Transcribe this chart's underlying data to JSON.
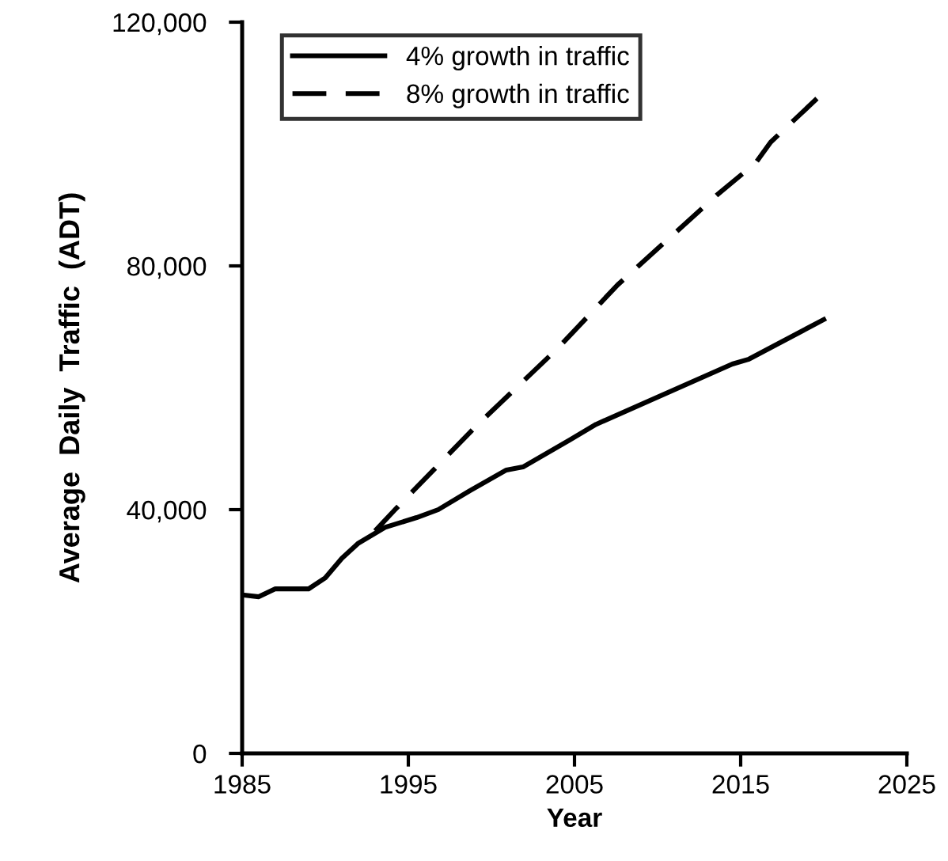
{
  "chart_data": {
    "type": "line",
    "xlabel": "Year",
    "ylabel": "Average  Daily  Traffic  (ADT)",
    "xlim": [
      1985,
      2025
    ],
    "xticks": [
      1985,
      1995,
      2005,
      2015,
      2025
    ],
    "ylim": [
      0,
      120000
    ],
    "yticks": [
      {
        "value": 0,
        "label": "0"
      },
      {
        "value": 40000,
        "label": "40,000"
      },
      {
        "value": 80000,
        "label": "80,000"
      },
      {
        "value": 120000,
        "label": "120,000"
      }
    ],
    "grid": false,
    "legend": "top left",
    "marker": "none",
    "series": [
      {
        "name": "4% growth in traffic",
        "color": "#000000",
        "line_style": "solid",
        "x": [
          1985,
          1986,
          1987,
          1989,
          1990,
          1991,
          1992,
          1993.6,
          1995.5,
          1996.8,
          1998.7,
          2000.9,
          2001.9,
          2004.7,
          2006.3,
          2014.5,
          2015.5,
          2020
        ],
        "values": [
          26000,
          25700,
          27000,
          27000,
          28800,
          32000,
          34500,
          37100,
          38700,
          40000,
          43100,
          46500,
          47000,
          51400,
          54000,
          63900,
          64700,
          71200
        ]
      },
      {
        "name": "8% growth in traffic",
        "color": "#000000",
        "line_style": "dashed",
        "x": [
          1993,
          1994.2,
          1999,
          2004,
          2007.6,
          2013.6,
          2015.9,
          2016.8,
          2019.8
        ],
        "values": [
          36500,
          40000,
          53500,
          66500,
          76900,
          91700,
          96900,
          100300,
          108000
        ]
      }
    ]
  }
}
